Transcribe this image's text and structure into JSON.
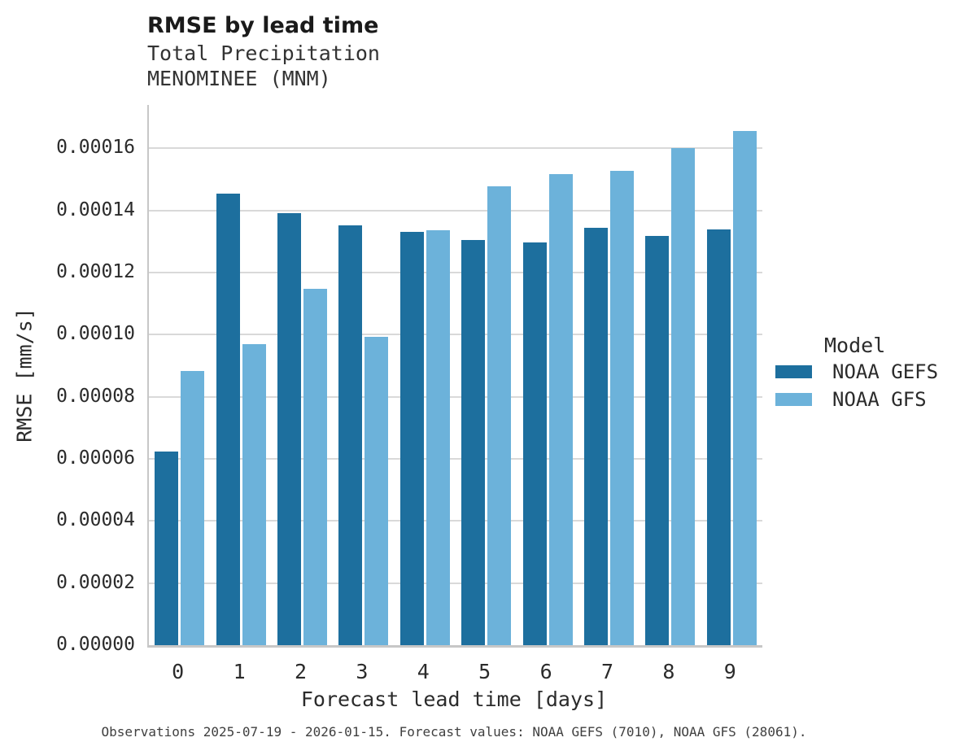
{
  "chart_data": {
    "type": "bar",
    "title": "RMSE by lead time",
    "subtitle1": "Total Precipitation",
    "subtitle2": "MENOMINEE (MNM)",
    "xlabel": "Forecast lead time [days]",
    "ylabel": "RMSE [mm/s]",
    "legend_title": "Model",
    "legend_position": "right",
    "grid": "horizontal",
    "caption": "Observations 2025-07-19 - 2026-01-15. Forecast values: NOAA GEFS (7010), NOAA GFS (28061).",
    "categories": [
      "0",
      "1",
      "2",
      "3",
      "4",
      "5",
      "6",
      "7",
      "8",
      "9"
    ],
    "series": [
      {
        "name": "NOAA GEFS",
        "color": "#1d6f9e",
        "values": [
          6.25e-05,
          0.0001455,
          0.0001392,
          0.0001352,
          0.0001332,
          0.0001305,
          0.0001297,
          0.0001345,
          0.0001318,
          0.000134
        ]
      },
      {
        "name": "NOAA GFS",
        "color": "#6cb2da",
        "values": [
          8.82e-05,
          9.7e-05,
          0.0001147,
          9.93e-05,
          0.0001337,
          0.0001478,
          0.0001516,
          0.0001528,
          0.00016,
          0.0001655
        ]
      }
    ],
    "ylim": [
      0,
      0.000174
    ],
    "yticks": [
      {
        "value": 0.0,
        "label": "0.00000"
      },
      {
        "value": 2e-05,
        "label": "0.00002"
      },
      {
        "value": 4e-05,
        "label": "0.00004"
      },
      {
        "value": 6e-05,
        "label": "0.00006"
      },
      {
        "value": 8e-05,
        "label": "0.00008"
      },
      {
        "value": 0.0001,
        "label": "0.00010"
      },
      {
        "value": 0.00012,
        "label": "0.00012"
      },
      {
        "value": 0.00014,
        "label": "0.00014"
      },
      {
        "value": 0.00016,
        "label": "0.00016"
      }
    ]
  },
  "colors": {
    "grid": "#d9d9d9",
    "spine": "#c7c7c7",
    "text": "#2b2b2b",
    "caption_text": "#404040"
  }
}
